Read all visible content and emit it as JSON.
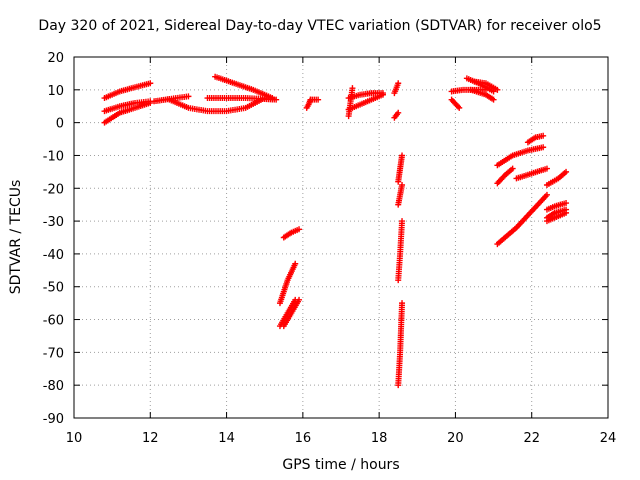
{
  "chart_data": {
    "type": "scatter",
    "title": "Day 320 of 2021, Sidereal Day-to-day VTEC variation (SDTVAR) for receiver olo5",
    "xlabel": "GPS time / hours",
    "ylabel": "SDTVAR / TECUs",
    "xlim": [
      10,
      24
    ],
    "ylim": [
      -90,
      20
    ],
    "xticks": [
      10,
      12,
      14,
      16,
      18,
      20,
      22,
      24
    ],
    "yticks": [
      -90,
      -80,
      -70,
      -60,
      -50,
      -40,
      -30,
      -20,
      -10,
      0,
      10,
      20
    ],
    "grid": true,
    "marker": "plus",
    "color": "#ff0000",
    "series": [
      {
        "x": [
          10.8,
          11.2,
          11.6,
          12.0
        ],
        "y": [
          7.5,
          9.5,
          10.8,
          12.0
        ]
      },
      {
        "x": [
          10.8,
          11.2,
          11.6,
          12.0
        ],
        "y": [
          3.5,
          5.0,
          6.0,
          6.5
        ]
      },
      {
        "x": [
          10.8,
          11.2,
          11.6,
          12.0
        ],
        "y": [
          0,
          3.0,
          4.5,
          6.0
        ]
      },
      {
        "x": [
          12.1,
          12.5,
          13.0
        ],
        "y": [
          6.5,
          7.2,
          8.0
        ]
      },
      {
        "x": [
          12.5,
          13.0,
          13.5,
          14.0,
          14.5,
          15.0
        ],
        "y": [
          7.0,
          4.5,
          3.5,
          3.5,
          4.5,
          7.5
        ]
      },
      {
        "x": [
          13.5,
          14.0,
          14.5,
          15.0,
          15.3
        ],
        "y": [
          7.5,
          7.5,
          7.5,
          7.2,
          7.0
        ]
      },
      {
        "x": [
          13.7,
          14.2,
          14.7,
          15.2
        ],
        "y": [
          14.0,
          12.0,
          10.0,
          7.5
        ]
      },
      {
        "x": [
          16.1,
          16.15,
          16.2
        ],
        "y": [
          4.5,
          5.5,
          7.0
        ]
      },
      {
        "x": [
          16.2,
          16.4
        ],
        "y": [
          7.0,
          7.0
        ]
      },
      {
        "x": [
          17.2,
          17.5,
          17.8,
          18.1
        ],
        "y": [
          4.0,
          5.5,
          7.0,
          8.5
        ]
      },
      {
        "x": [
          17.2,
          17.5,
          17.8,
          18.1
        ],
        "y": [
          7.5,
          8.5,
          9.0,
          9.0
        ]
      },
      {
        "x": [
          17.2,
          17.3
        ],
        "y": [
          2.0,
          10.5
        ]
      },
      {
        "x": [
          18.4,
          18.5
        ],
        "y": [
          9.0,
          12.0
        ]
      },
      {
        "x": [
          18.4,
          18.5
        ],
        "y": [
          1.5,
          3.0
        ]
      },
      {
        "x": [
          19.9,
          20.1
        ],
        "y": [
          7.0,
          4.5
        ]
      },
      {
        "x": [
          19.9,
          20.2,
          20.5,
          20.8
        ],
        "y": [
          9.5,
          10.0,
          10.0,
          10.0
        ]
      },
      {
        "x": [
          20.3,
          20.6,
          21.0
        ],
        "y": [
          13.5,
          12.0,
          9.5
        ]
      },
      {
        "x": [
          20.5,
          20.8,
          21.1
        ],
        "y": [
          12.5,
          12.0,
          10.0
        ]
      },
      {
        "x": [
          20.4,
          20.8,
          21.0
        ],
        "y": [
          10.0,
          8.5,
          7.0
        ]
      },
      {
        "x": [
          15.4,
          15.6,
          15.8
        ],
        "y": [
          -55.0,
          -48.0,
          -43.0
        ]
      },
      {
        "x": [
          15.4,
          15.6,
          15.8
        ],
        "y": [
          -62.0,
          -58.0,
          -54.0
        ]
      },
      {
        "x": [
          15.5,
          15.7,
          15.9
        ],
        "y": [
          -62.0,
          -58.0,
          -54.0
        ]
      },
      {
        "x": [
          15.5,
          15.7,
          15.9
        ],
        "y": [
          -35.0,
          -33.5,
          -32.5
        ]
      },
      {
        "x": [
          18.5,
          18.55,
          18.6
        ],
        "y": [
          -18.0,
          -14.0,
          -10.0
        ]
      },
      {
        "x": [
          18.5,
          18.55,
          18.6
        ],
        "y": [
          -25.0,
          -22.0,
          -19.0
        ]
      },
      {
        "x": [
          18.5,
          18.55,
          18.6
        ],
        "y": [
          -48.0,
          -40.0,
          -30.0
        ]
      },
      {
        "x": [
          18.5,
          18.55,
          18.6
        ],
        "y": [
          -80.0,
          -70.0,
          -55.0
        ]
      },
      {
        "x": [
          21.1,
          21.5,
          21.9,
          22.3
        ],
        "y": [
          -13.0,
          -10.0,
          -8.5,
          -7.5
        ]
      },
      {
        "x": [
          21.9,
          22.1,
          22.3
        ],
        "y": [
          -6.0,
          -4.5,
          -4.0
        ]
      },
      {
        "x": [
          21.1,
          21.3,
          21.5
        ],
        "y": [
          -18.5,
          -16.0,
          -14.0
        ]
      },
      {
        "x": [
          21.6,
          22.0,
          22.4
        ],
        "y": [
          -17.0,
          -15.5,
          -14.0
        ]
      },
      {
        "x": [
          21.1,
          21.6,
          22.0,
          22.4
        ],
        "y": [
          -37.0,
          -32.0,
          -27.0,
          -22.0
        ]
      },
      {
        "x": [
          22.4,
          22.7,
          22.9
        ],
        "y": [
          -19.0,
          -17.0,
          -15.0
        ]
      },
      {
        "x": [
          22.4,
          22.6,
          22.9
        ],
        "y": [
          -26.5,
          -25.5,
          -24.5
        ]
      },
      {
        "x": [
          22.4,
          22.6,
          22.9
        ],
        "y": [
          -29.0,
          -27.5,
          -26.5
        ]
      },
      {
        "x": [
          22.4,
          22.6,
          22.9
        ],
        "y": [
          -30.0,
          -29.0,
          -27.5
        ]
      }
    ]
  }
}
